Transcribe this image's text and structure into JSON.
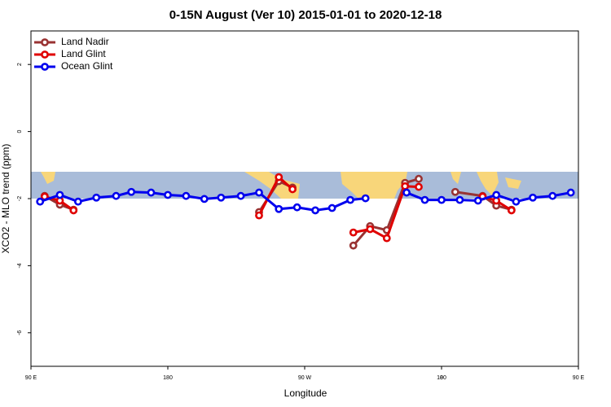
{
  "chart_data": {
    "type": "line",
    "title": "0-15N August (Ver 10)   2015-01-01 to 2020-12-18",
    "x_label": "Longitude",
    "y_label": "XCO2 - MLO trend (ppm)",
    "xlim": [
      90,
      450
    ],
    "ylim": [
      -7,
      3
    ],
    "xticks": [
      {
        "value": 90,
        "label": "90 E"
      },
      180,
      {
        "value": 270,
        "label": "90 W"
      },
      {
        "value": 360,
        "label": "0"
      },
      {
        "value": 450,
        "label": "90 E"
      },
      {
        "value": 540,
        "label": "180"
      }
    ],
    "yticks": [
      -6,
      -4,
      -2,
      0,
      2
    ],
    "legend": "top-left",
    "series": [
      {
        "name": "Land Nadir",
        "color": "#993333",
        "x": [
          99,
          109,
          118,
          200,
          240,
          253,
          262,
          290,
          302,
          313,
          324,
          336,
          345,
          360,
          369,
          387,
          396,
          406
        ],
        "values": [
          -1.92,
          -2.18,
          -2.33,
          null,
          -2.4,
          -1.48,
          -1.67,
          null,
          -3.4,
          -2.82,
          -2.94,
          -1.53,
          -1.41,
          null,
          -1.8,
          -1.92,
          -2.21,
          -2.33
        ]
      },
      {
        "name": "Land Glint",
        "color": "#e00000",
        "x": [
          99,
          109,
          118,
          200,
          240,
          253,
          262,
          290,
          302,
          313,
          324,
          336,
          345,
          370,
          387,
          396,
          406
        ],
        "values": [
          -1.94,
          -2.06,
          -2.35,
          null,
          -2.5,
          -1.36,
          -1.72,
          null,
          -3.01,
          -2.91,
          -3.18,
          -1.63,
          -1.65,
          null,
          -1.94,
          -2.06,
          -2.35
        ]
      },
      {
        "name": "Ocean Glint",
        "color": "#0000ee",
        "x": [
          96,
          109,
          121,
          133,
          146,
          156,
          169,
          180,
          192,
          204,
          215,
          228,
          240,
          253,
          265,
          277,
          288,
          300,
          310,
          323,
          337,
          349,
          360,
          372,
          384,
          396,
          409,
          420,
          433,
          445
        ],
        "values": [
          -2.09,
          -1.89,
          -2.09,
          -1.97,
          -1.92,
          -1.8,
          -1.82,
          -1.89,
          -1.92,
          -2.01,
          -1.97,
          -1.92,
          -1.82,
          -2.31,
          -2.26,
          -2.35,
          -2.28,
          -2.04,
          -1.99,
          null,
          -1.82,
          -2.04,
          -2.04,
          -2.04,
          -2.06,
          -1.89,
          -2.09,
          -1.97,
          -1.92,
          -1.82
        ]
      }
    ]
  }
}
